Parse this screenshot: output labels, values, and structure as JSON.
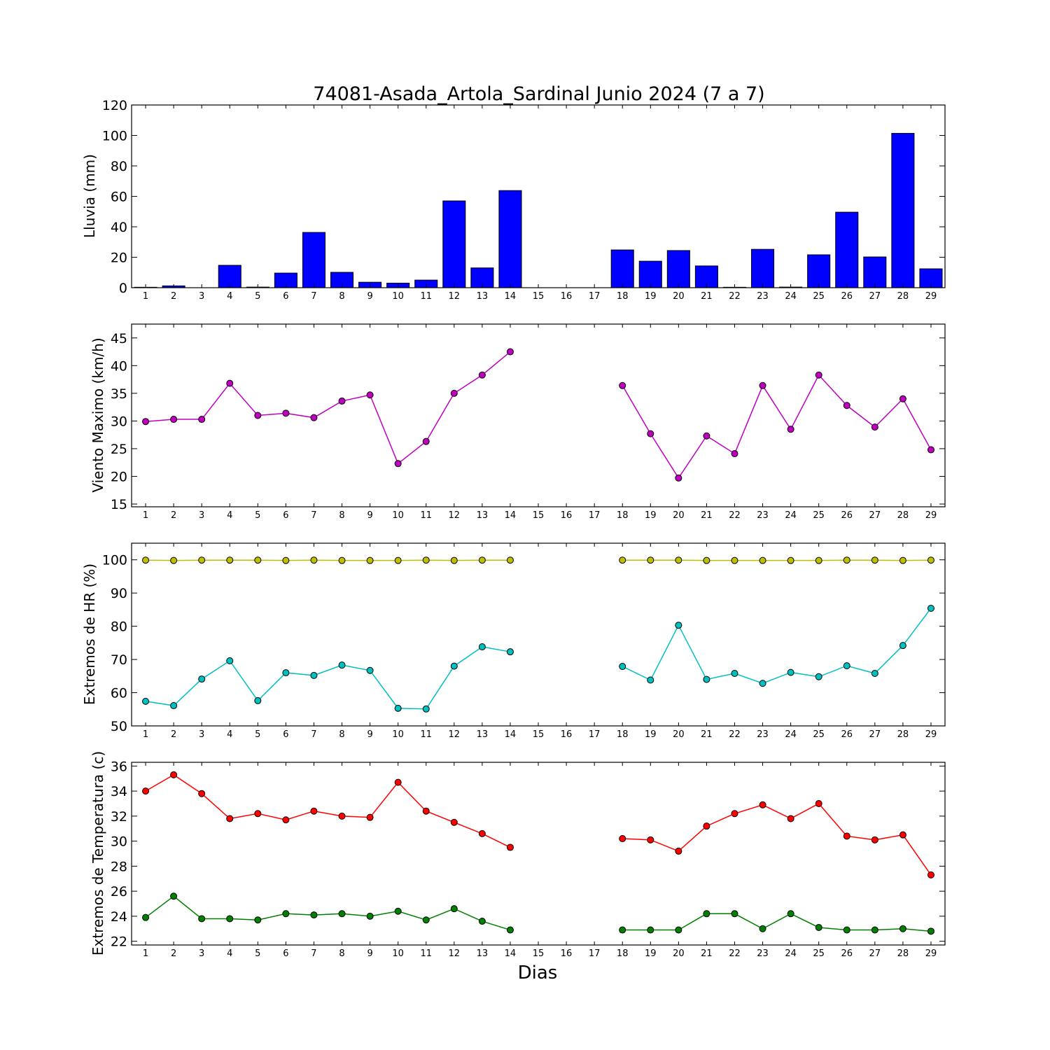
{
  "title": "74081-Asada_Artola_Sardinal Junio 2024  (7 a 7)",
  "xlabel": "Dias",
  "chart_data": [
    {
      "type": "bar",
      "ylabel": "Lluvia (mm)",
      "ylim": [
        0,
        120
      ],
      "yticks": [
        0,
        20,
        40,
        60,
        80,
        100,
        120
      ],
      "categories": [
        1,
        2,
        3,
        4,
        5,
        6,
        7,
        8,
        9,
        10,
        11,
        12,
        13,
        14,
        15,
        16,
        17,
        18,
        19,
        20,
        21,
        22,
        23,
        24,
        25,
        26,
        27,
        28,
        29
      ],
      "series": [
        {
          "name": "",
          "color": "#0000ff",
          "values": [
            0.3,
            1.2,
            0,
            14.7,
            0.4,
            9.6,
            36.3,
            10.1,
            3.6,
            3.0,
            5.0,
            57.0,
            13.0,
            63.8,
            null,
            null,
            null,
            24.8,
            17.4,
            24.4,
            14.3,
            0.3,
            25.2,
            0.4,
            21.6,
            49.6,
            20.2,
            101.4,
            12.4
          ]
        }
      ]
    },
    {
      "type": "line",
      "ylabel": "Viento Maximo (km/h)",
      "ylim": [
        14.5,
        47.5
      ],
      "yticks": [
        15,
        20,
        25,
        30,
        35,
        40,
        45
      ],
      "categories": [
        1,
        2,
        3,
        4,
        5,
        6,
        7,
        8,
        9,
        10,
        11,
        12,
        13,
        14,
        15,
        16,
        17,
        18,
        19,
        20,
        21,
        22,
        23,
        24,
        25,
        26,
        27,
        28,
        29
      ],
      "series": [
        {
          "name": "",
          "color": "#bf00bf",
          "values": [
            29.9,
            30.3,
            30.3,
            36.8,
            31.0,
            31.4,
            30.6,
            33.6,
            34.7,
            22.3,
            26.3,
            35.0,
            38.3,
            42.5,
            null,
            null,
            null,
            36.4,
            27.7,
            19.7,
            27.3,
            24.1,
            36.4,
            28.5,
            38.3,
            32.8,
            28.9,
            34.0,
            24.8
          ]
        }
      ]
    },
    {
      "type": "line",
      "ylabel": "Extremos de HR (%)",
      "ylim": [
        50,
        105
      ],
      "yticks": [
        50,
        60,
        70,
        80,
        90,
        100
      ],
      "categories": [
        1,
        2,
        3,
        4,
        5,
        6,
        7,
        8,
        9,
        10,
        11,
        12,
        13,
        14,
        15,
        16,
        17,
        18,
        19,
        20,
        21,
        22,
        23,
        24,
        25,
        26,
        27,
        28,
        29
      ],
      "series": [
        {
          "name": "",
          "color": "#bfbf00",
          "values": [
            99.9,
            99.8,
            99.9,
            99.9,
            99.9,
            99.8,
            99.9,
            99.8,
            99.8,
            99.8,
            99.9,
            99.8,
            99.9,
            99.9,
            null,
            null,
            null,
            99.9,
            99.9,
            99.9,
            99.8,
            99.8,
            99.8,
            99.8,
            99.8,
            99.9,
            99.9,
            99.8,
            99.9
          ]
        },
        {
          "name": "",
          "color": "#00bfbf",
          "values": [
            57.4,
            56.1,
            64.1,
            69.6,
            57.6,
            66.0,
            65.2,
            68.3,
            66.7,
            55.3,
            55.1,
            68.0,
            73.8,
            72.3,
            null,
            null,
            null,
            67.9,
            63.8,
            80.3,
            64.0,
            65.8,
            62.8,
            66.1,
            64.8,
            68.1,
            65.8,
            74.2,
            85.4
          ]
        }
      ]
    },
    {
      "type": "line",
      "ylabel": "Extremos de Temperatura (c)",
      "ylim": [
        21.7,
        36.3
      ],
      "yticks": [
        22,
        24,
        26,
        28,
        30,
        32,
        34,
        36
      ],
      "categories": [
        1,
        2,
        3,
        4,
        5,
        6,
        7,
        8,
        9,
        10,
        11,
        12,
        13,
        14,
        15,
        16,
        17,
        18,
        19,
        20,
        21,
        22,
        23,
        24,
        25,
        26,
        27,
        28,
        29
      ],
      "series": [
        {
          "name": "",
          "color": "#ff0000",
          "values": [
            34.0,
            35.3,
            33.8,
            31.8,
            32.2,
            31.7,
            32.4,
            32.0,
            31.9,
            34.7,
            32.4,
            31.5,
            30.6,
            29.5,
            null,
            null,
            null,
            30.2,
            30.1,
            29.2,
            31.2,
            32.2,
            32.9,
            31.8,
            33.0,
            30.4,
            30.1,
            30.5,
            27.3
          ]
        },
        {
          "name": "",
          "color": "#008000",
          "values": [
            23.9,
            25.6,
            23.8,
            23.8,
            23.7,
            24.2,
            24.1,
            24.2,
            24.0,
            24.4,
            23.7,
            24.6,
            23.6,
            22.9,
            null,
            null,
            null,
            22.9,
            22.9,
            22.9,
            24.2,
            24.2,
            23.0,
            24.2,
            23.1,
            22.9,
            22.9,
            23.0,
            22.8
          ]
        }
      ]
    }
  ]
}
